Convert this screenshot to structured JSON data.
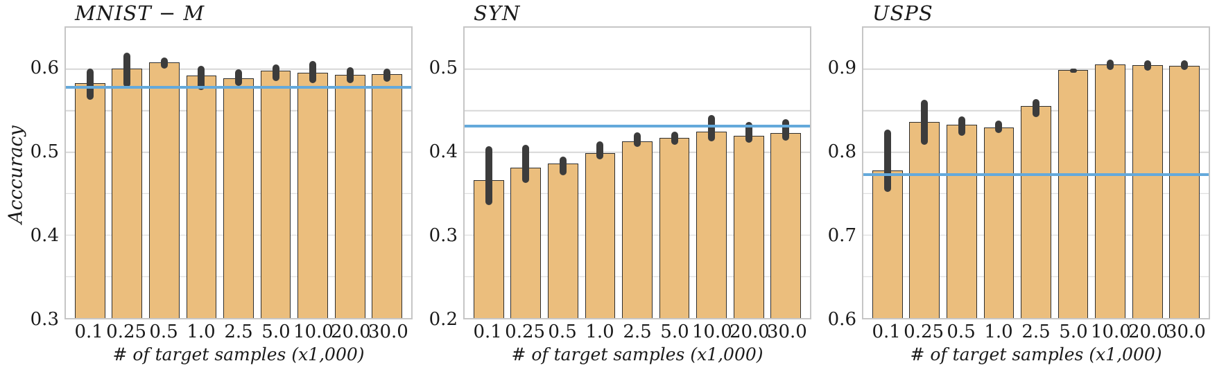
{
  "figure": {
    "ylabel": "Acccuracy",
    "xlabel": "# of target samples (x1,000)"
  },
  "colors": {
    "bar_fill": "#EBBE7D",
    "bar_edge": "#2d2d2d",
    "error_bar": "#3c3c3c",
    "baseline_line": "#64A9DB",
    "gridline": "#d7d7d7",
    "plot_border": "#c6c6c6"
  },
  "chart_data": [
    {
      "type": "bar",
      "title": "MNIST − M",
      "xlabel": "# of target samples (x1,000)",
      "ylabel": "Acccuracy",
      "categories": [
        "0.1",
        "0.25",
        "0.5",
        "1.0",
        "2.5",
        "5.0",
        "10.0",
        "20.0",
        "30.0"
      ],
      "values": [
        0.583,
        0.601,
        0.608,
        0.592,
        0.589,
        0.598,
        0.596,
        0.593,
        0.594
      ],
      "error_low": [
        0.563,
        0.578,
        0.601,
        0.575,
        0.58,
        0.586,
        0.583,
        0.583,
        0.585
      ],
      "error_high": [
        0.601,
        0.62,
        0.614,
        0.604,
        0.6,
        0.606,
        0.61,
        0.602,
        0.601
      ],
      "baseline": 0.578,
      "ylim": [
        0.3,
        0.65
      ],
      "yticks": [
        0.3,
        0.4,
        0.5,
        0.6
      ],
      "grid_step": 0.05,
      "grid": true,
      "legend": false
    },
    {
      "type": "bar",
      "title": "SYN",
      "xlabel": "# of target samples (x1,000)",
      "ylabel": "",
      "categories": [
        "0.1",
        "0.25",
        "0.5",
        "1.0",
        "2.5",
        "5.0",
        "10.0",
        "20.0",
        "30.0"
      ],
      "values": [
        0.366,
        0.381,
        0.386,
        0.399,
        0.413,
        0.417,
        0.425,
        0.42,
        0.423
      ],
      "error_low": [
        0.336,
        0.363,
        0.372,
        0.391,
        0.406,
        0.409,
        0.413,
        0.411,
        0.414
      ],
      "error_high": [
        0.407,
        0.409,
        0.395,
        0.413,
        0.424,
        0.425,
        0.445,
        0.436,
        0.44
      ],
      "baseline": 0.431,
      "ylim": [
        0.2,
        0.55
      ],
      "yticks": [
        0.2,
        0.3,
        0.4,
        0.5
      ],
      "grid_step": 0.05,
      "grid": true,
      "legend": false
    },
    {
      "type": "bar",
      "title": "USPS",
      "xlabel": "# of target samples (x1,000)",
      "ylabel": "",
      "categories": [
        "0.1",
        "0.25",
        "0.5",
        "1.0",
        "2.5",
        "5.0",
        "10.0",
        "20.0",
        "30.0"
      ],
      "values": [
        0.778,
        0.836,
        0.833,
        0.83,
        0.856,
        0.899,
        0.906,
        0.905,
        0.904
      ],
      "error_low": [
        0.752,
        0.809,
        0.82,
        0.823,
        0.842,
        0.896,
        0.899,
        0.898,
        0.899
      ],
      "error_high": [
        0.827,
        0.863,
        0.843,
        0.838,
        0.864,
        0.901,
        0.912,
        0.911,
        0.911
      ],
      "baseline": 0.773,
      "ylim": [
        0.6,
        0.95
      ],
      "yticks": [
        0.6,
        0.7,
        0.8,
        0.9
      ],
      "grid_step": 0.05,
      "grid": true,
      "legend": false
    }
  ]
}
